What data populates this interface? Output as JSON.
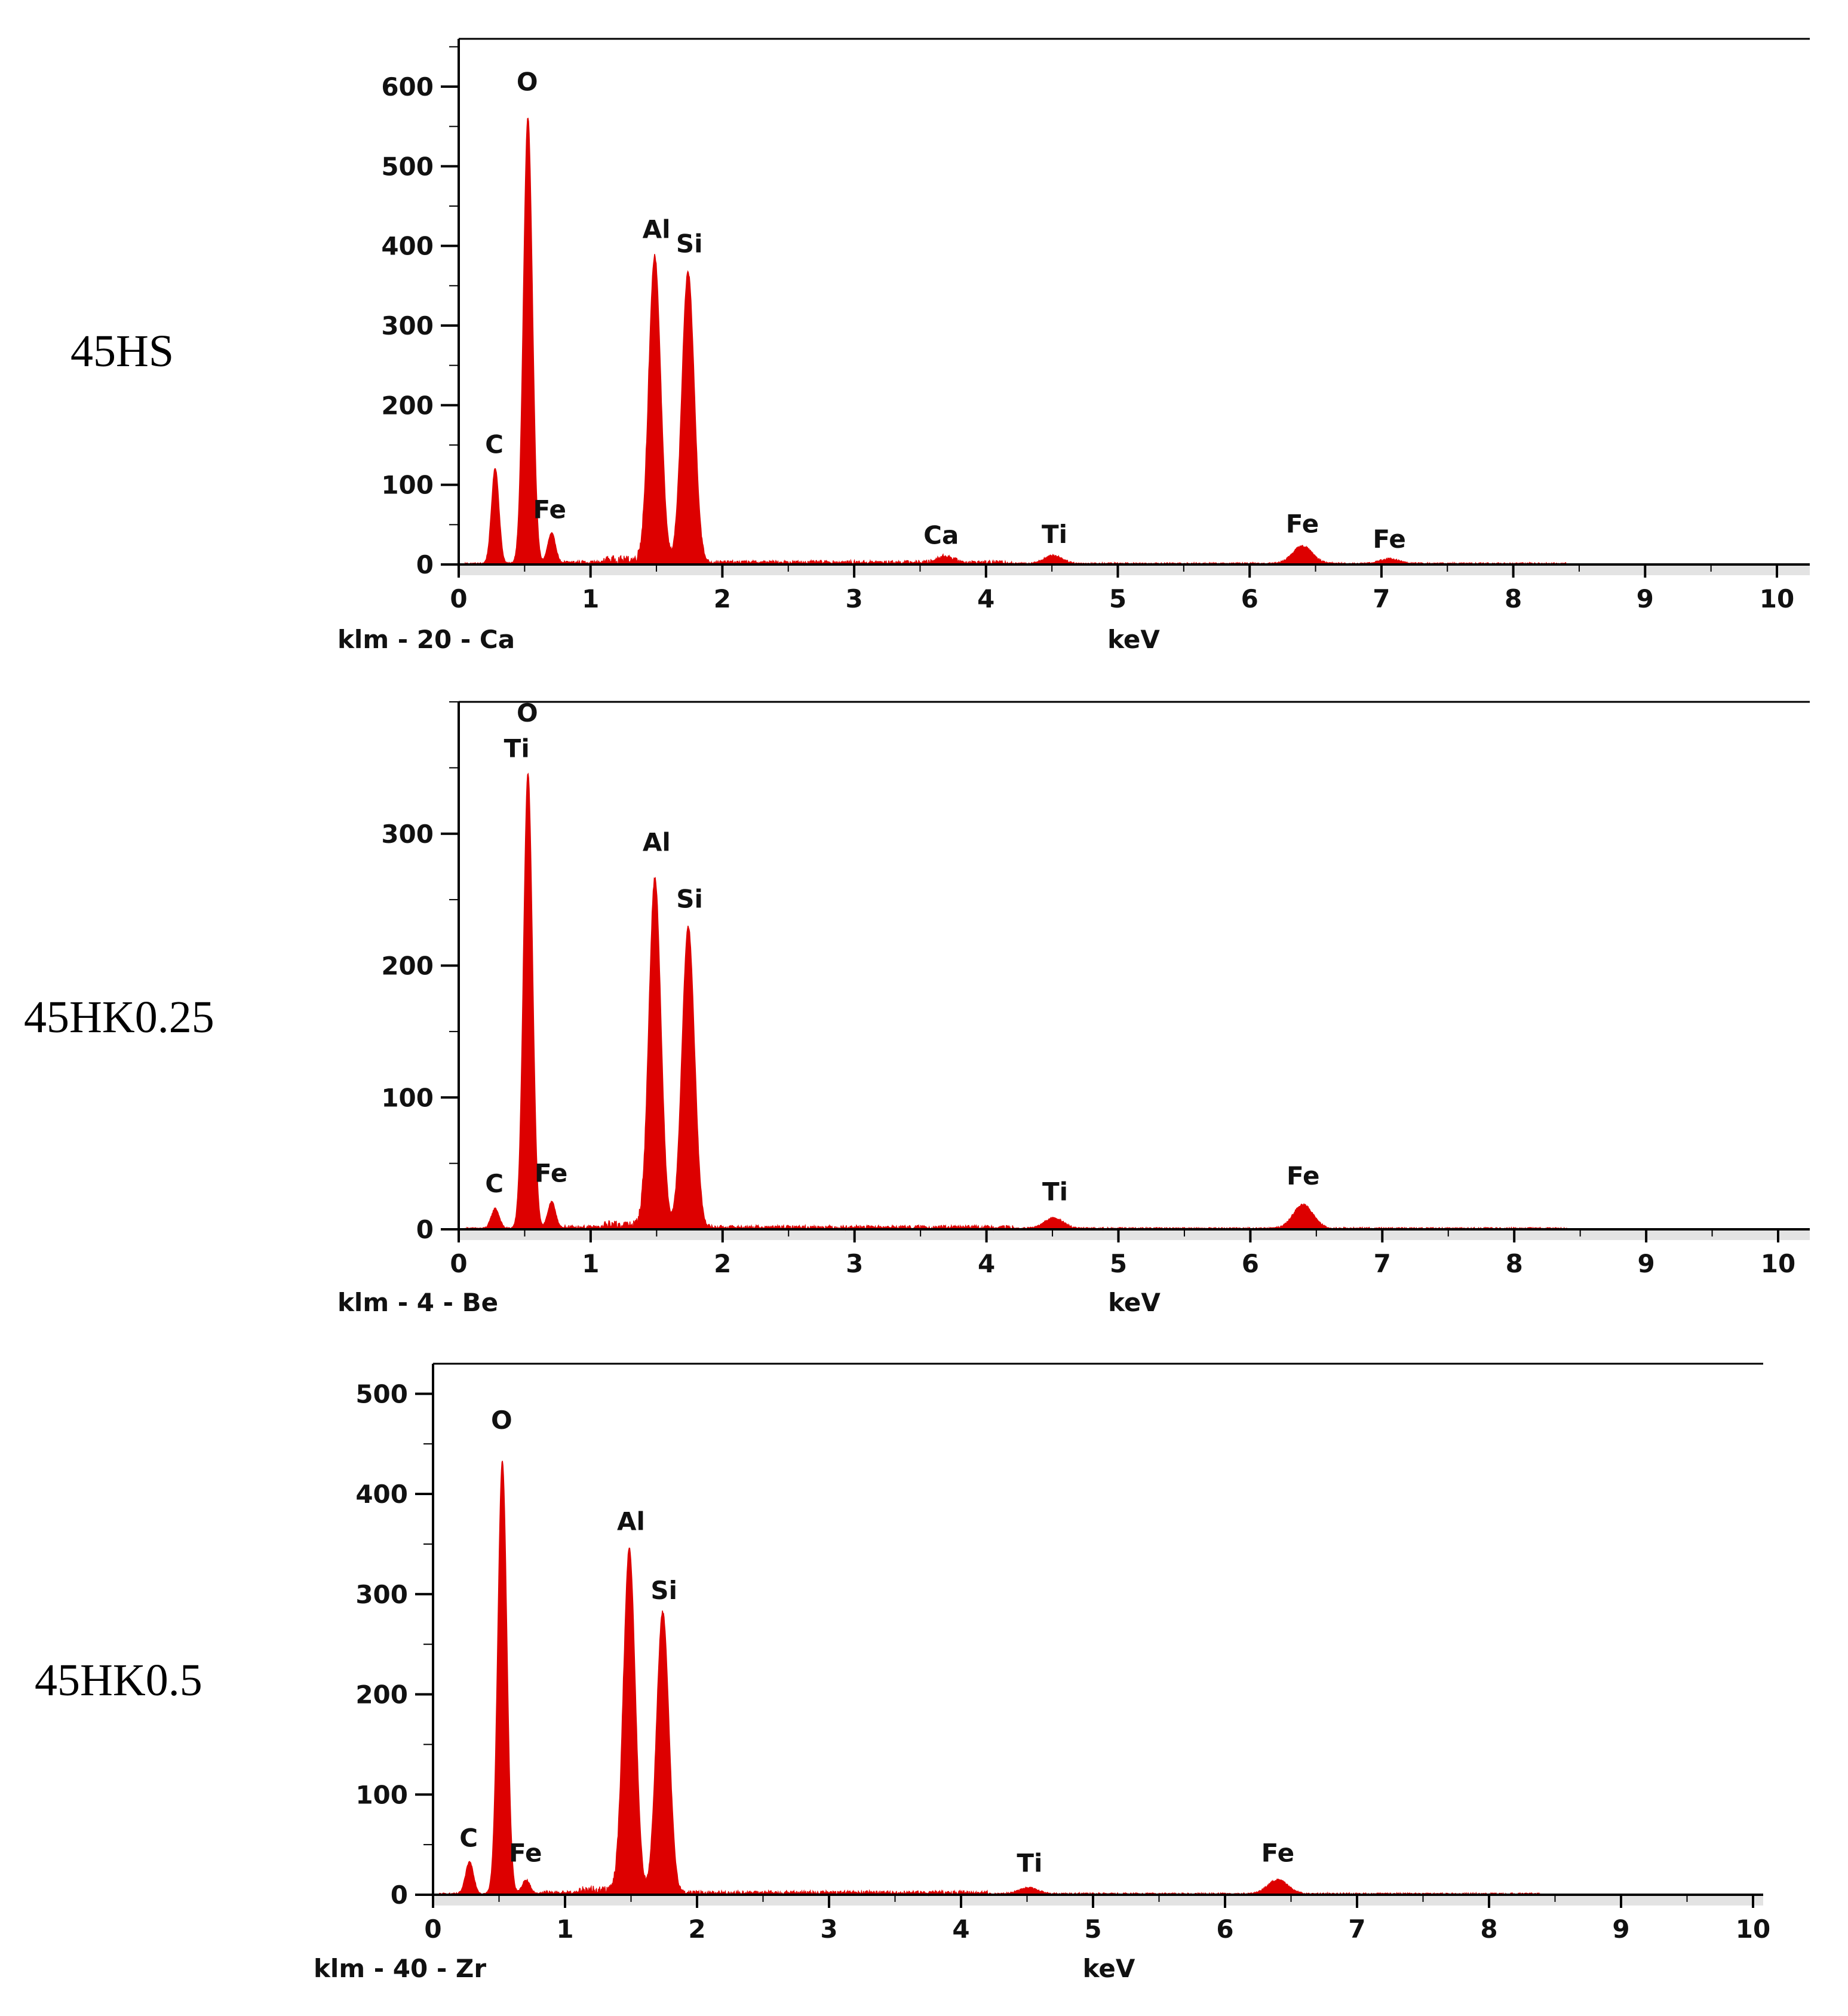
{
  "figure": {
    "samples": [
      "45HS",
      "45HK0.25",
      "45HK0.5"
    ]
  },
  "colors": {
    "spectrum": "#dd0000",
    "axis": "#000000",
    "baseline_band": "#b0b0b0",
    "background": "#ffffff"
  },
  "chart_data": [
    {
      "type": "area",
      "sample": "45HS",
      "title": "",
      "xlabel": "keV",
      "ylabel": "",
      "corner_label": "klm - 20 - Ca",
      "xlim": [
        0,
        10.25
      ],
      "ylim": [
        0,
        660
      ],
      "xticks": [
        0,
        1,
        2,
        3,
        4,
        5,
        6,
        7,
        8,
        9,
        10
      ],
      "yticks": [
        0,
        100,
        200,
        300,
        400,
        500,
        600
      ],
      "background_level": 5,
      "peaks": [
        {
          "element": "C",
          "kev": 0.277,
          "counts": 120,
          "width": 0.028
        },
        {
          "element": "O",
          "kev": 0.525,
          "counts": 560,
          "width": 0.034
        },
        {
          "element": "Fe",
          "kev": 0.705,
          "counts": 38,
          "width": 0.03
        },
        {
          "element": "Al",
          "kev": 1.487,
          "counts": 385,
          "width": 0.045
        },
        {
          "element": "Si",
          "kev": 1.74,
          "counts": 365,
          "width": 0.047
        },
        {
          "element": "Ca",
          "kev": 3.69,
          "counts": 8,
          "width": 0.06
        },
        {
          "element": "Ti",
          "kev": 4.51,
          "counts": 10,
          "width": 0.07
        },
        {
          "element": "Fe",
          "kev": 6.4,
          "counts": 22,
          "width": 0.075
        },
        {
          "element": "Fe",
          "kev": 7.06,
          "counts": 6,
          "width": 0.07
        }
      ],
      "annotations": [
        {
          "text": "C",
          "kev": 0.27,
          "counts": 140
        },
        {
          "text": "O",
          "kev": 0.52,
          "counts": 595
        },
        {
          "text": "Fe",
          "kev": 0.69,
          "counts": 58
        },
        {
          "text": "Al",
          "kev": 1.5,
          "counts": 410
        },
        {
          "text": "Si",
          "kev": 1.75,
          "counts": 392
        },
        {
          "text": "Ca",
          "kev": 3.66,
          "counts": 26
        },
        {
          "text": "Ti",
          "kev": 4.52,
          "counts": 27
        },
        {
          "text": "Fe",
          "kev": 6.4,
          "counts": 40
        },
        {
          "text": "Fe",
          "kev": 7.06,
          "counts": 21
        }
      ]
    },
    {
      "type": "area",
      "sample": "45HK0.25",
      "title": "",
      "xlabel": "keV",
      "ylabel": "",
      "corner_label": "klm - 4 - Be",
      "xlim": [
        0,
        10.25
      ],
      "ylim": [
        0,
        400
      ],
      "xticks": [
        0,
        1,
        2,
        3,
        4,
        5,
        6,
        7,
        8,
        9,
        10
      ],
      "yticks": [
        0,
        100,
        200,
        300
      ],
      "background_level": 3,
      "peaks": [
        {
          "element": "C",
          "kev": 0.277,
          "counts": 15,
          "width": 0.03
        },
        {
          "element": "O",
          "kev": 0.525,
          "counts": 345,
          "width": 0.034
        },
        {
          "element": "Fe",
          "kev": 0.705,
          "counts": 20,
          "width": 0.03
        },
        {
          "element": "Al",
          "kev": 1.487,
          "counts": 265,
          "width": 0.045
        },
        {
          "element": "Si",
          "kev": 1.74,
          "counts": 228,
          "width": 0.047
        },
        {
          "element": "Ti",
          "kev": 4.51,
          "counts": 8,
          "width": 0.07
        },
        {
          "element": "Fe",
          "kev": 6.4,
          "counts": 18,
          "width": 0.075
        }
      ],
      "annotations": [
        {
          "text": "O",
          "kev": 0.52,
          "counts": 385
        },
        {
          "text": "Ti",
          "kev": 0.44,
          "counts": 358
        },
        {
          "text": "Al",
          "kev": 1.5,
          "counts": 287
        },
        {
          "text": "Si",
          "kev": 1.75,
          "counts": 244
        },
        {
          "text": "C",
          "kev": 0.27,
          "counts": 28
        },
        {
          "text": "Fe",
          "kev": 0.7,
          "counts": 36
        },
        {
          "text": "Ti",
          "kev": 4.52,
          "counts": 22
        },
        {
          "text": "Fe",
          "kev": 6.4,
          "counts": 34
        }
      ]
    },
    {
      "type": "area",
      "sample": "45HK0.5",
      "title": "",
      "xlabel": "keV",
      "ylabel": "",
      "corner_label": "klm - 40 - Zr",
      "xlim": [
        0,
        10.25
      ],
      "ylim": [
        0,
        530
      ],
      "xticks": [
        0,
        1,
        2,
        3,
        4,
        5,
        6,
        7,
        8,
        9,
        10
      ],
      "yticks": [
        0,
        100,
        200,
        300,
        400,
        500
      ],
      "background_level": 4,
      "peaks": [
        {
          "element": "C",
          "kev": 0.277,
          "counts": 32,
          "width": 0.03
        },
        {
          "element": "O",
          "kev": 0.525,
          "counts": 432,
          "width": 0.034
        },
        {
          "element": "Fe",
          "kev": 0.705,
          "counts": 14,
          "width": 0.03
        },
        {
          "element": "Al",
          "kev": 1.487,
          "counts": 343,
          "width": 0.045
        },
        {
          "element": "Si",
          "kev": 1.74,
          "counts": 280,
          "width": 0.047
        },
        {
          "element": "Ti",
          "kev": 4.51,
          "counts": 6,
          "width": 0.07
        },
        {
          "element": "Fe",
          "kev": 6.4,
          "counts": 14,
          "width": 0.075
        }
      ],
      "annotations": [
        {
          "text": "C",
          "kev": 0.27,
          "counts": 48
        },
        {
          "text": "O",
          "kev": 0.52,
          "counts": 465
        },
        {
          "text": "Fe",
          "kev": 0.7,
          "counts": 33
        },
        {
          "text": "Al",
          "kev": 1.5,
          "counts": 364
        },
        {
          "text": "Si",
          "kev": 1.75,
          "counts": 295
        },
        {
          "text": "Ti",
          "kev": 4.52,
          "counts": 23
        },
        {
          "text": "Fe",
          "kev": 6.4,
          "counts": 33
        }
      ]
    }
  ]
}
